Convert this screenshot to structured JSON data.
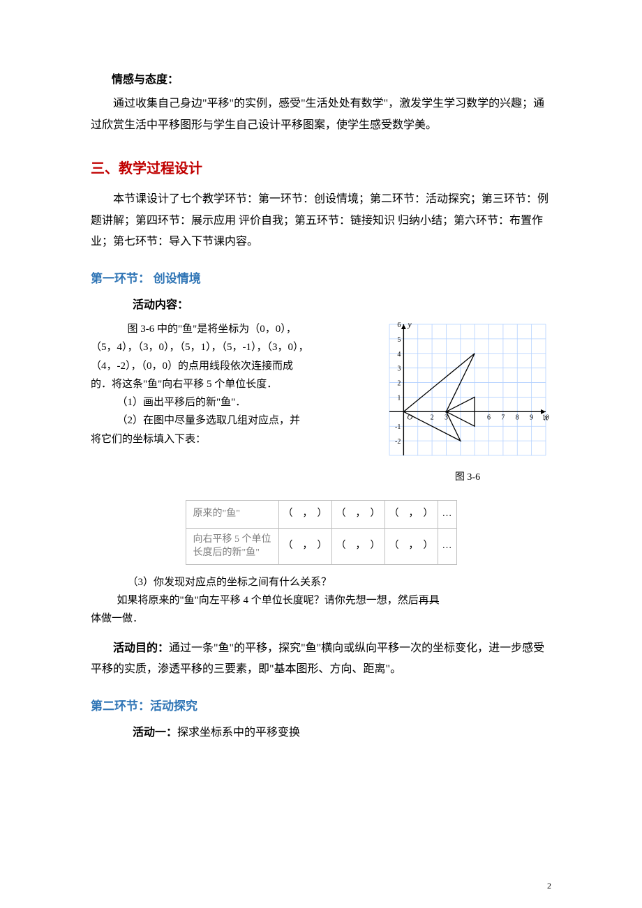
{
  "sec1": {
    "title": "情感与态度：",
    "body": "通过收集自己身边\"平移\"的实例，感受\"生活处处有数学\"，激发学生学习数学的兴趣；通过欣赏生活中平移图形与学生自己设计平移图案，使学生感受数学美。"
  },
  "h2": "三、教学过程设计",
  "designOverview": "本节课设计了七个教学环节：第一环节：创设情境；第二环节：活动探究；第三环节：例题讲解；第四环节：展示应用 评价自我；第五环节：链接知识 归纳小结；第六环节：布置作业；第七环节：导入下节课内容。",
  "seg1": {
    "title": "第一环节：  创设情境",
    "activityContentLabel": "活动内容：",
    "problem": {
      "line1a": "图 3-6 中的\"鱼\"是将坐标为（0，0），",
      "line1b": "（5，4），（3，0），（5，1），（5，-1），（3，0），",
      "line1c": "（4，-2），（0，0）的点用线段依次连接而成",
      "line1d": "的．将这条\"鱼\"向右平移 5 个单位长度．",
      "q1": "（1）画出平移后的新\"鱼\"．",
      "q2a": "（2）在图中尽量多选取几组对应点，并",
      "q2b": "将它们的坐标填入下表：",
      "q3": "（3）你发现对应点的坐标之间有什么关系？",
      "ext1": "如果将原来的\"鱼\"向左平移 4 个单位长度呢？请你先想一想，然后再具",
      "ext2": "体做一做．"
    },
    "figLabel": "图 3-6",
    "table": {
      "row1label": "原来的\"鱼\"",
      "row2label": "向右平移 5 个单位长度后的新\"鱼\"",
      "pair": "（　，　）",
      "dots": "…"
    },
    "purposeLabel": "活动目的：",
    "purposeText": "通过一条\"鱼\"的平移，探究\"鱼\"横向或纵向平移一次的坐标变化，进一步感受平移的实质，渗透平移的三要素，即\"基本图形、方向、距离\"。"
  },
  "seg2": {
    "title": "第二环节：活动探究",
    "act1label": "活动一：",
    "act1text": "探求坐标系中的平移变换"
  },
  "chart": {
    "gridColor": "#b3d1ff",
    "axisColor": "#000000",
    "xlim": [
      -1,
      10
    ],
    "ylim": [
      -3,
      6
    ],
    "yticks": [
      6,
      5,
      4,
      3,
      2,
      1,
      -1,
      -2
    ],
    "yminus": [
      "-1",
      "-2"
    ],
    "xticks": [
      6,
      7,
      8,
      9,
      10
    ],
    "xtick2": 2,
    "xtick3": 3,
    "origin": "O",
    "xlabel": "x",
    "ylabel": "y",
    "points": [
      [
        0,
        0
      ],
      [
        5,
        4
      ],
      [
        3,
        0
      ],
      [
        5,
        1
      ],
      [
        5,
        -1
      ],
      [
        3,
        0
      ],
      [
        4,
        -2
      ],
      [
        0,
        0
      ]
    ]
  },
  "pageNum": "2"
}
